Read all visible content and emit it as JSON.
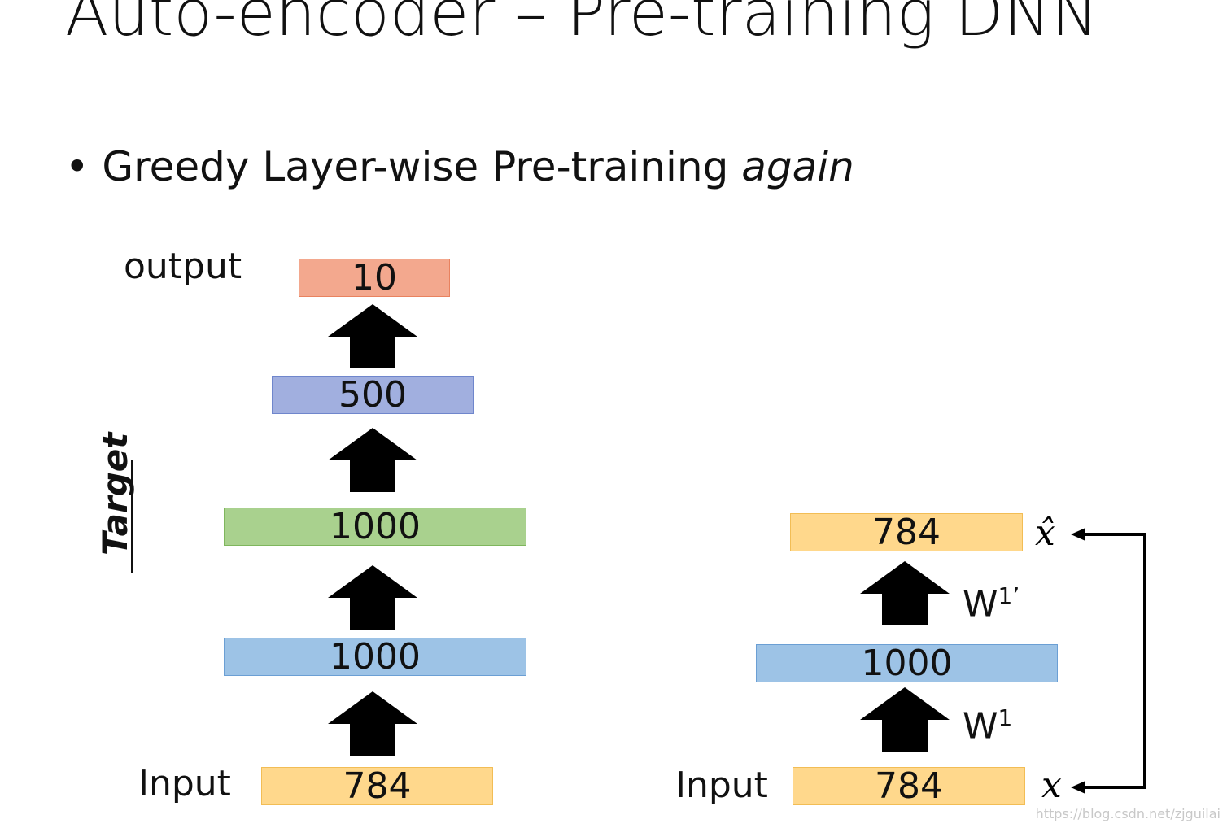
{
  "header": {
    "title": "Auto-encoder – Pre-training DNN"
  },
  "bullet": {
    "text": "Greedy Layer-wise Pre-training",
    "emphasis": "again"
  },
  "left_network": {
    "output_label": "output",
    "input_label": "Input",
    "target_label": "Target",
    "layers": [
      10,
      500,
      1000,
      1000,
      784
    ]
  },
  "right_network": {
    "input_label": "Input",
    "layers": [
      784,
      1000,
      784
    ],
    "weights": [
      {
        "base": "W",
        "sup": "1’"
      },
      {
        "base": "W",
        "sup": "1"
      }
    ],
    "reconstruction": "x̂",
    "input_symbol": "x"
  },
  "watermark": "https://blog.csdn.net/zjguilai"
}
